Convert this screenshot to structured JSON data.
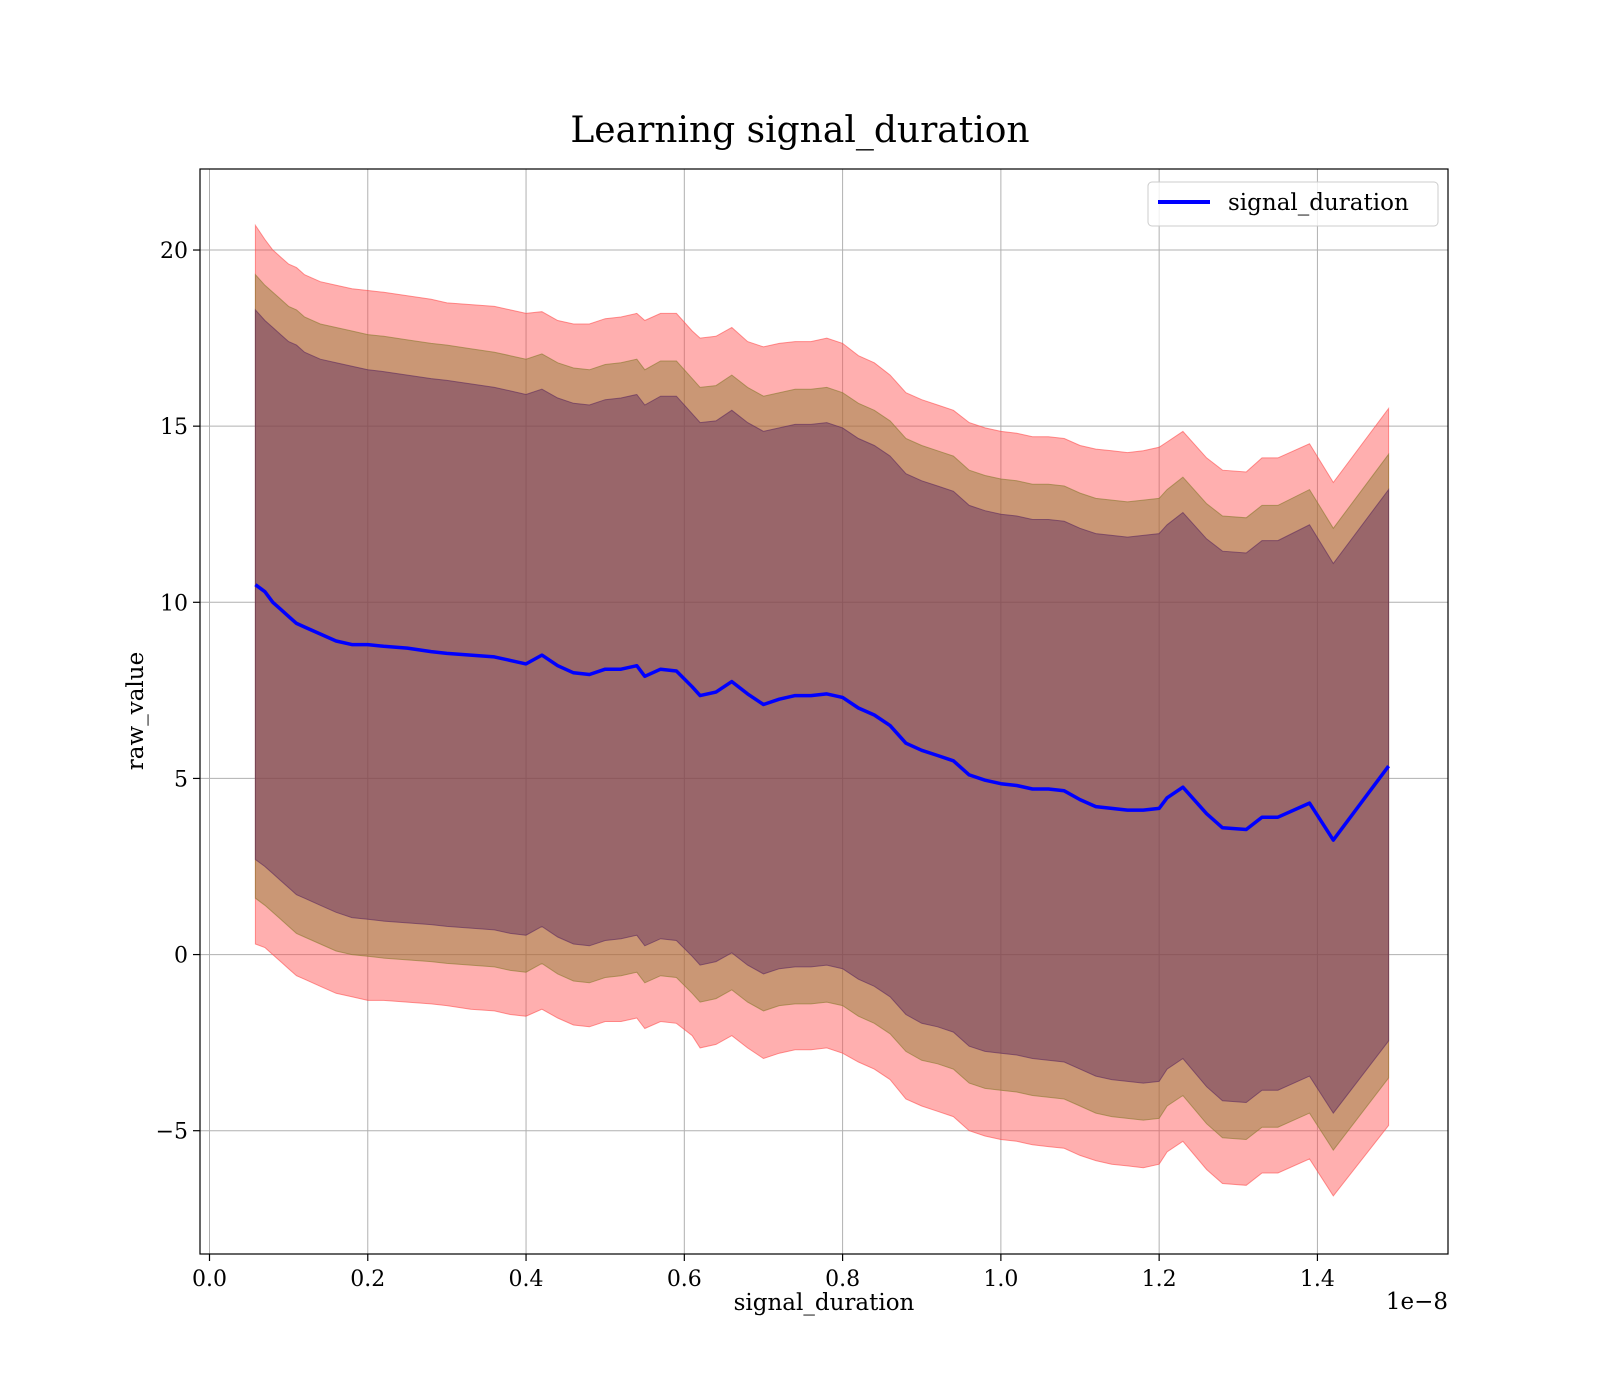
{
  "chart_data": {
    "type": "line",
    "title": "Learning signal_duration",
    "xlabel": "signal_duration",
    "ylabel": "raw_value",
    "x_offset_text": "1e−8",
    "xlim": [
      -1.2e-10,
      1.565e-08
    ],
    "ylim": [
      -8.5,
      22.3
    ],
    "x_ticks": [
      0.0,
      2e-09,
      4e-09,
      6e-09,
      8e-09,
      1e-08,
      1.2e-08,
      1.4e-08
    ],
    "x_tick_labels": [
      "0.0",
      "0.2",
      "0.4",
      "0.6",
      "0.8",
      "1.0",
      "1.2",
      "1.4"
    ],
    "y_ticks": [
      -5,
      0,
      5,
      10,
      15,
      20
    ],
    "y_tick_labels": [
      "−5",
      "0",
      "5",
      "10",
      "15",
      "20"
    ],
    "grid": true,
    "legend_position": "top-right",
    "series": [
      {
        "name": "signal_duration",
        "color": "#0000ff",
        "x": [
          5.8e-10,
          7e-10,
          8e-10,
          9e-10,
          1e-09,
          1.1e-09,
          1.2e-09,
          1.4e-09,
          1.6e-09,
          1.8e-09,
          2e-09,
          2.2e-09,
          2.5e-09,
          2.8e-09,
          3e-09,
          3.3e-09,
          3.6e-09,
          3.8e-09,
          4e-09,
          4.2e-09,
          4.4e-09,
          4.6e-09,
          4.8e-09,
          5e-09,
          5.2e-09,
          5.4e-09,
          5.5e-09,
          5.7e-09,
          5.9e-09,
          6.1e-09,
          6.2e-09,
          6.4e-09,
          6.6e-09,
          6.8e-09,
          7e-09,
          7.2e-09,
          7.4e-09,
          7.6e-09,
          7.8e-09,
          8e-09,
          8.2e-09,
          8.4e-09,
          8.6e-09,
          8.8e-09,
          9e-09,
          9.2e-09,
          9.4e-09,
          9.6e-09,
          9.8e-09,
          1e-08,
          1.02e-08,
          1.04e-08,
          1.06e-08,
          1.08e-08,
          1.1e-08,
          1.12e-08,
          1.14e-08,
          1.16e-08,
          1.18e-08,
          1.2e-08,
          1.21e-08,
          1.23e-08,
          1.26e-08,
          1.28e-08,
          1.31e-08,
          1.33e-08,
          1.35e-08,
          1.39e-08,
          1.42e-08,
          1.49e-08
        ],
        "values": [
          10.5,
          10.3,
          10.0,
          9.8,
          9.6,
          9.4,
          9.3,
          9.1,
          8.9,
          8.8,
          8.8,
          8.75,
          8.7,
          8.6,
          8.55,
          8.5,
          8.45,
          8.35,
          8.25,
          8.5,
          8.2,
          8.0,
          7.95,
          8.1,
          8.1,
          8.2,
          7.9,
          8.1,
          8.05,
          7.6,
          7.35,
          7.45,
          7.75,
          7.4,
          7.1,
          7.25,
          7.35,
          7.35,
          7.4,
          7.3,
          7.0,
          6.8,
          6.5,
          6.0,
          5.8,
          5.65,
          5.5,
          5.1,
          4.95,
          4.85,
          4.8,
          4.7,
          4.7,
          4.65,
          4.4,
          4.2,
          4.15,
          4.1,
          4.1,
          4.15,
          4.45,
          4.75,
          4.0,
          3.6,
          3.55,
          3.9,
          3.9,
          4.3,
          3.25,
          5.35
        ]
      }
    ],
    "bands": [
      {
        "color": "#ff4d4d",
        "opacity": 0.45,
        "upper": [
          20.7,
          20.3,
          20.0,
          19.8,
          19.6,
          19.5,
          19.3,
          19.1,
          19.0,
          18.9,
          18.85,
          18.8,
          18.7,
          18.6,
          18.5,
          18.45,
          18.4,
          18.3,
          18.2,
          18.25,
          18.0,
          17.9,
          17.9,
          18.05,
          18.1,
          18.2,
          18.0,
          18.2,
          18.2,
          17.7,
          17.5,
          17.55,
          17.8,
          17.4,
          17.25,
          17.35,
          17.4,
          17.4,
          17.5,
          17.35,
          17.0,
          16.8,
          16.45,
          15.95,
          15.75,
          15.6,
          15.45,
          15.1,
          14.95,
          14.85,
          14.8,
          14.7,
          14.7,
          14.65,
          14.45,
          14.35,
          14.3,
          14.25,
          14.3,
          14.4,
          14.55,
          14.85,
          14.1,
          13.75,
          13.7,
          14.1,
          14.1,
          14.5,
          13.4,
          15.5
        ],
        "lower": [
          0.3,
          0.2,
          0.0,
          -0.2,
          -0.4,
          -0.6,
          -0.7,
          -0.9,
          -1.1,
          -1.2,
          -1.3,
          -1.3,
          -1.35,
          -1.4,
          -1.45,
          -1.55,
          -1.6,
          -1.7,
          -1.75,
          -1.55,
          -1.8,
          -2.0,
          -2.05,
          -1.9,
          -1.9,
          -1.8,
          -2.1,
          -1.9,
          -1.95,
          -2.3,
          -2.65,
          -2.55,
          -2.3,
          -2.65,
          -2.95,
          -2.8,
          -2.7,
          -2.7,
          -2.65,
          -2.8,
          -3.05,
          -3.25,
          -3.55,
          -4.1,
          -4.3,
          -4.45,
          -4.6,
          -5.0,
          -5.15,
          -5.25,
          -5.3,
          -5.4,
          -5.45,
          -5.5,
          -5.7,
          -5.85,
          -5.95,
          -6.0,
          -6.05,
          -5.95,
          -5.6,
          -5.3,
          -6.1,
          -6.5,
          -6.55,
          -6.2,
          -6.2,
          -5.8,
          -6.85,
          -4.85
        ]
      },
      {
        "color": "#8a7a2e",
        "opacity": 0.45,
        "upper": [
          19.3,
          19.0,
          18.8,
          18.6,
          18.4,
          18.3,
          18.1,
          17.9,
          17.8,
          17.7,
          17.6,
          17.55,
          17.45,
          17.35,
          17.3,
          17.2,
          17.1,
          17.0,
          16.9,
          17.05,
          16.8,
          16.65,
          16.6,
          16.75,
          16.8,
          16.9,
          16.6,
          16.85,
          16.85,
          16.35,
          16.1,
          16.15,
          16.45,
          16.1,
          15.85,
          15.95,
          16.05,
          16.05,
          16.1,
          15.95,
          15.65,
          15.45,
          15.15,
          14.65,
          14.45,
          14.3,
          14.15,
          13.75,
          13.6,
          13.5,
          13.45,
          13.35,
          13.35,
          13.3,
          13.1,
          12.95,
          12.9,
          12.85,
          12.9,
          12.95,
          13.2,
          13.55,
          12.8,
          12.45,
          12.4,
          12.75,
          12.75,
          13.2,
          12.1,
          14.2
        ],
        "lower": [
          1.6,
          1.4,
          1.2,
          1.0,
          0.8,
          0.6,
          0.5,
          0.3,
          0.1,
          0.0,
          -0.05,
          -0.1,
          -0.15,
          -0.2,
          -0.25,
          -0.3,
          -0.35,
          -0.45,
          -0.5,
          -0.25,
          -0.55,
          -0.75,
          -0.8,
          -0.65,
          -0.6,
          -0.5,
          -0.8,
          -0.6,
          -0.65,
          -1.1,
          -1.35,
          -1.25,
          -1.0,
          -1.35,
          -1.6,
          -1.45,
          -1.4,
          -1.4,
          -1.35,
          -1.45,
          -1.75,
          -1.95,
          -2.25,
          -2.75,
          -3.0,
          -3.1,
          -3.25,
          -3.65,
          -3.8,
          -3.85,
          -3.9,
          -4.0,
          -4.05,
          -4.1,
          -4.3,
          -4.5,
          -4.6,
          -4.65,
          -4.7,
          -4.65,
          -4.3,
          -4.0,
          -4.8,
          -5.2,
          -5.25,
          -4.9,
          -4.9,
          -4.5,
          -5.55,
          -3.5
        ]
      },
      {
        "color": "#5e2a5e",
        "opacity": 0.45,
        "upper": [
          18.3,
          18.0,
          17.8,
          17.6,
          17.4,
          17.3,
          17.1,
          16.9,
          16.8,
          16.7,
          16.6,
          16.55,
          16.45,
          16.35,
          16.3,
          16.2,
          16.1,
          16.0,
          15.9,
          16.05,
          15.8,
          15.65,
          15.6,
          15.75,
          15.8,
          15.9,
          15.6,
          15.85,
          15.85,
          15.35,
          15.1,
          15.15,
          15.45,
          15.1,
          14.85,
          14.95,
          15.05,
          15.05,
          15.1,
          14.95,
          14.65,
          14.45,
          14.15,
          13.65,
          13.45,
          13.3,
          13.15,
          12.75,
          12.6,
          12.5,
          12.45,
          12.35,
          12.35,
          12.3,
          12.1,
          11.95,
          11.9,
          11.85,
          11.9,
          11.95,
          12.2,
          12.55,
          11.8,
          11.45,
          11.4,
          11.75,
          11.75,
          12.2,
          11.1,
          13.2
        ],
        "lower": [
          2.7,
          2.5,
          2.3,
          2.1,
          1.9,
          1.7,
          1.6,
          1.4,
          1.2,
          1.05,
          1.0,
          0.95,
          0.9,
          0.85,
          0.8,
          0.75,
          0.7,
          0.6,
          0.55,
          0.8,
          0.5,
          0.3,
          0.25,
          0.4,
          0.45,
          0.55,
          0.25,
          0.45,
          0.4,
          -0.05,
          -0.3,
          -0.2,
          0.05,
          -0.3,
          -0.55,
          -0.4,
          -0.35,
          -0.35,
          -0.3,
          -0.4,
          -0.7,
          -0.9,
          -1.2,
          -1.7,
          -1.95,
          -2.05,
          -2.2,
          -2.6,
          -2.75,
          -2.8,
          -2.85,
          -2.95,
          -3.0,
          -3.05,
          -3.25,
          -3.45,
          -3.55,
          -3.6,
          -3.65,
          -3.6,
          -3.25,
          -2.95,
          -3.75,
          -4.15,
          -4.2,
          -3.85,
          -3.85,
          -3.45,
          -4.5,
          -2.45
        ]
      }
    ]
  }
}
